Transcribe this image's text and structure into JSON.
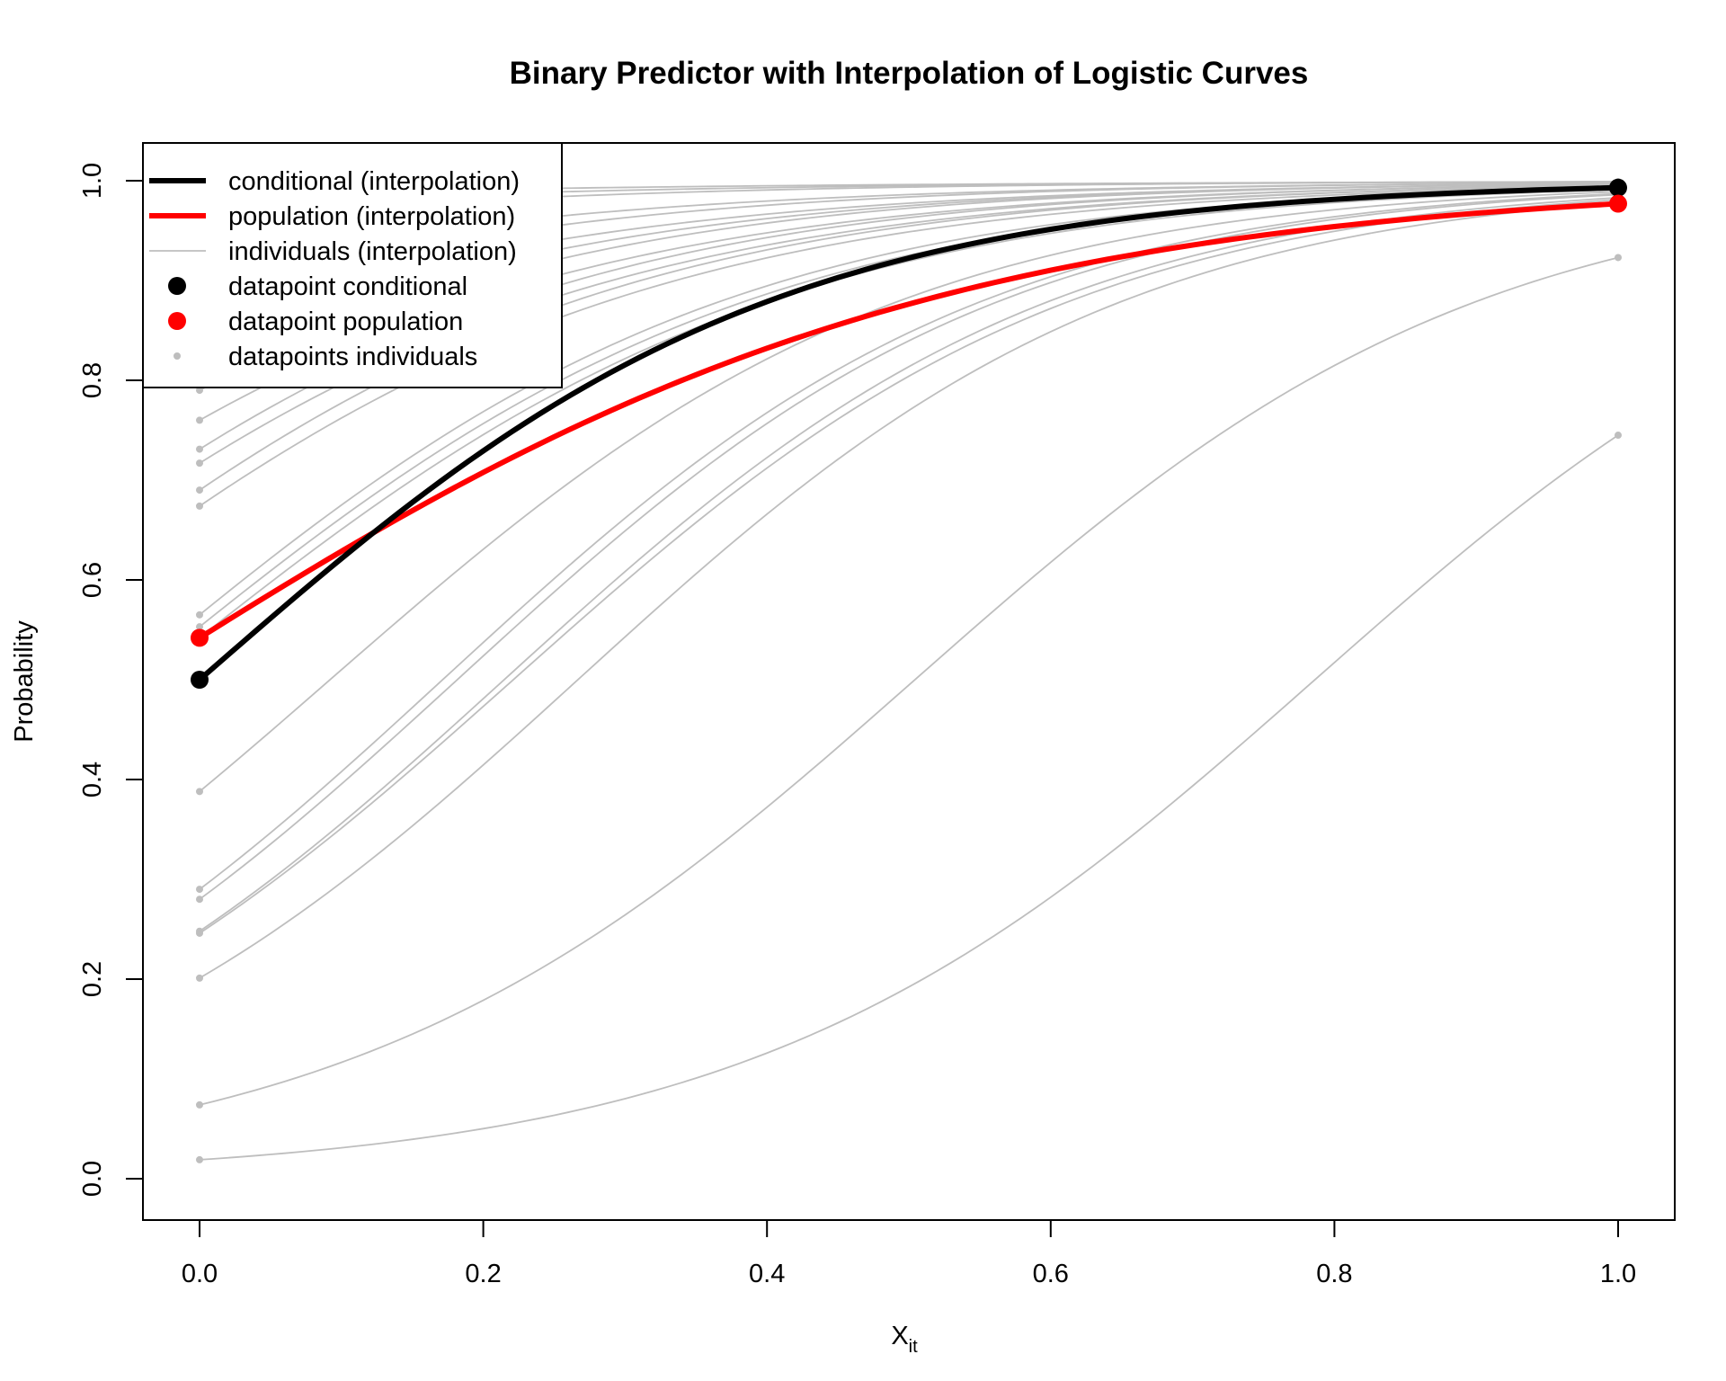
{
  "chart_data": {
    "type": "line",
    "title": "Binary Predictor with Interpolation of Logistic Curves",
    "xlabel_main": "X",
    "xlabel_sub": "it",
    "ylabel": "Probability",
    "xlim": [
      0.0,
      1.0
    ],
    "ylim": [
      0.0,
      1.0
    ],
    "x_ticks": [
      "0.0",
      "0.2",
      "0.4",
      "0.6",
      "0.8",
      "1.0"
    ],
    "y_ticks": [
      "0.0",
      "0.2",
      "0.4",
      "0.6",
      "0.8",
      "1.0"
    ],
    "legend": {
      "placement": "top-left",
      "entries": [
        {
          "label": "conditional (interpolation)",
          "kind": "line",
          "color": "#000000",
          "width": "thick"
        },
        {
          "label": "population (interpolation)",
          "kind": "line",
          "color": "#ff0000",
          "width": "thick"
        },
        {
          "label": "individuals (interpolation)",
          "kind": "line",
          "color": "#bebebe",
          "width": "thin"
        },
        {
          "label": "datapoint conditional",
          "kind": "point",
          "color": "#000000",
          "size": "large"
        },
        {
          "label": "datapoint population",
          "kind": "point",
          "color": "#ff0000",
          "size": "large"
        },
        {
          "label": "datapoints individuals",
          "kind": "point",
          "color": "#bebebe",
          "size": "small"
        }
      ]
    },
    "conditional": {
      "p0": 0.5,
      "p1": 0.993,
      "color": "#000000"
    },
    "population": {
      "p0": 0.542,
      "p1": 0.977,
      "color": "#ff0000"
    },
    "individuals_color": "#bebebe",
    "individuals": [
      {
        "p0": 0.019,
        "p1": 0.745
      },
      {
        "p0": 0.074,
        "p1": 0.923
      },
      {
        "p0": 0.201,
        "p1": 0.978
      },
      {
        "p0": 0.246,
        "p1": 0.981
      },
      {
        "p0": 0.248,
        "p1": 0.983
      },
      {
        "p0": 0.28,
        "p1": 0.986
      },
      {
        "p0": 0.29,
        "p1": 0.987
      },
      {
        "p0": 0.388,
        "p1": 0.989
      },
      {
        "p0": 0.542,
        "p1": 0.991
      },
      {
        "p0": 0.553,
        "p1": 0.992
      },
      {
        "p0": 0.565,
        "p1": 0.993
      },
      {
        "p0": 0.674,
        "p1": 0.994
      },
      {
        "p0": 0.69,
        "p1": 0.995
      },
      {
        "p0": 0.717,
        "p1": 0.995
      },
      {
        "p0": 0.731,
        "p1": 0.996
      },
      {
        "p0": 0.76,
        "p1": 0.996
      },
      {
        "p0": 0.79,
        "p1": 0.997
      },
      {
        "p0": 0.82,
        "p1": 0.997
      },
      {
        "p0": 0.85,
        "p1": 0.997
      },
      {
        "p0": 0.88,
        "p1": 0.998
      },
      {
        "p0": 0.91,
        "p1": 0.998
      },
      {
        "p0": 0.96,
        "p1": 0.999
      },
      {
        "p0": 0.975,
        "p1": 0.999
      },
      {
        "p0": 0.985,
        "p1": 0.999
      }
    ]
  }
}
